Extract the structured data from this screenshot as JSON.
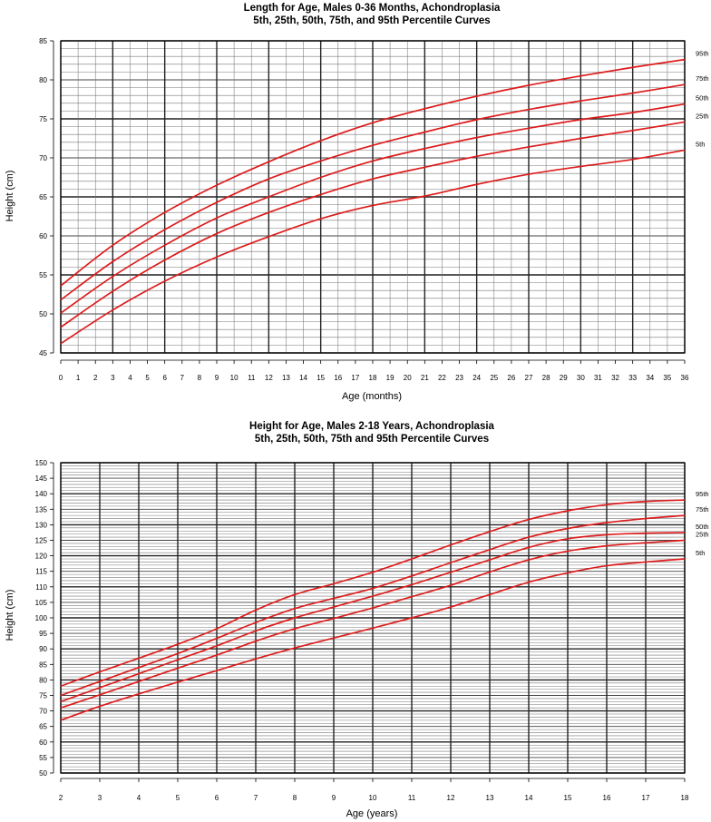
{
  "chart_data": [
    {
      "type": "line",
      "title": "Length for Age, Males 0-36 Months, Achondroplasia",
      "subtitle": "5th, 25th,  50th, 75th, and 95th Percentile Curves",
      "xlabel": "Age (months)",
      "ylabel": "Height (cm)",
      "xlim": [
        0,
        36
      ],
      "ylim": [
        45,
        85
      ],
      "xticks": [
        "0",
        "1",
        "2",
        "3",
        "4",
        "5",
        "6",
        "7",
        "8",
        "9",
        "10",
        "11",
        "12",
        "13",
        "14",
        "15",
        "16",
        "17",
        "18",
        "19",
        "20",
        "21",
        "22",
        "23",
        "24",
        "25",
        "26",
        "27",
        "28",
        "29",
        "30",
        "31",
        "32",
        "33",
        "34",
        "35",
        "36"
      ],
      "yticks": [
        "45",
        "50",
        "55",
        "60",
        "65",
        "70",
        "75",
        "80",
        "85"
      ],
      "grid": true,
      "x": [
        0,
        3,
        6,
        9,
        12,
        15,
        18,
        21,
        24,
        27,
        30,
        33,
        36
      ],
      "series": [
        {
          "name": "95th",
          "values": [
            53.6,
            58.8,
            63.0,
            66.5,
            69.5,
            72.2,
            74.5,
            76.3,
            77.9,
            79.3,
            80.5,
            81.6,
            82.6
          ]
        },
        {
          "name": "75th",
          "values": [
            51.8,
            56.7,
            60.8,
            64.3,
            67.3,
            69.6,
            71.6,
            73.3,
            74.9,
            76.2,
            77.3,
            78.3,
            79.4
          ]
        },
        {
          "name": "50th",
          "values": [
            50.1,
            54.8,
            58.8,
            62.3,
            65.0,
            67.5,
            69.6,
            71.2,
            72.6,
            73.8,
            74.9,
            75.8,
            76.9
          ]
        },
        {
          "name": "25th",
          "values": [
            48.3,
            52.9,
            56.9,
            60.3,
            63.0,
            65.3,
            67.3,
            68.8,
            70.2,
            71.4,
            72.5,
            73.5,
            74.6
          ]
        },
        {
          "name": "5th",
          "values": [
            46.2,
            50.5,
            54.2,
            57.3,
            59.9,
            62.2,
            63.9,
            65.1,
            66.6,
            67.9,
            68.9,
            69.8,
            71.0
          ]
        }
      ],
      "line_color": "#dd1c1c"
    },
    {
      "type": "line",
      "title": "Height for Age, Males 2-18 Years, Achondroplasia",
      "subtitle": "5th, 25th, 50th, 75th and 95th Percentile Curves",
      "xlabel": "Age (years)",
      "ylabel": "Height (cm)",
      "xlim": [
        2,
        18
      ],
      "ylim": [
        50,
        150
      ],
      "xticks": [
        "2",
        "3",
        "4",
        "5",
        "6",
        "7",
        "8",
        "9",
        "10",
        "11",
        "12",
        "13",
        "14",
        "15",
        "16",
        "17",
        "18"
      ],
      "yticks": [
        "50",
        "55",
        "60",
        "65",
        "70",
        "75",
        "80",
        "85",
        "90",
        "95",
        "100",
        "105",
        "110",
        "115",
        "120",
        "125",
        "130",
        "135",
        "140",
        "145",
        "150"
      ],
      "grid": true,
      "x": [
        2,
        3,
        4,
        5,
        6,
        7,
        8,
        9,
        10,
        11,
        12,
        13,
        14,
        15,
        16,
        17,
        18
      ],
      "series": [
        {
          "name": "95th",
          "values": [
            78.0,
            82.6,
            87.0,
            91.5,
            96.5,
            102.5,
            107.5,
            111.0,
            114.7,
            119.0,
            123.5,
            127.8,
            131.7,
            134.5,
            136.5,
            137.5,
            138.0
          ]
        },
        {
          "name": "75th",
          "values": [
            75.0,
            79.5,
            84.0,
            88.5,
            93.4,
            98.5,
            103.0,
            106.3,
            109.5,
            113.5,
            117.8,
            122.0,
            126.0,
            128.8,
            130.7,
            132.0,
            133.0
          ]
        },
        {
          "name": "50th",
          "values": [
            73.0,
            77.5,
            82.0,
            86.5,
            91.0,
            95.8,
            100.0,
            103.5,
            107.0,
            110.7,
            114.7,
            118.7,
            122.7,
            125.5,
            126.8,
            127.3,
            127.5
          ]
        },
        {
          "name": "25th",
          "values": [
            71.0,
            75.2,
            79.5,
            83.8,
            88.0,
            92.5,
            96.5,
            99.8,
            103.2,
            106.8,
            110.5,
            114.8,
            118.7,
            121.5,
            123.2,
            124.2,
            125.0
          ]
        },
        {
          "name": "5th",
          "values": [
            67.0,
            71.5,
            75.5,
            79.3,
            83.0,
            86.8,
            90.3,
            93.5,
            96.7,
            100.0,
            103.5,
            107.5,
            111.5,
            114.5,
            116.8,
            118.0,
            119.0
          ]
        }
      ],
      "line_color": "#dd1c1c"
    }
  ]
}
